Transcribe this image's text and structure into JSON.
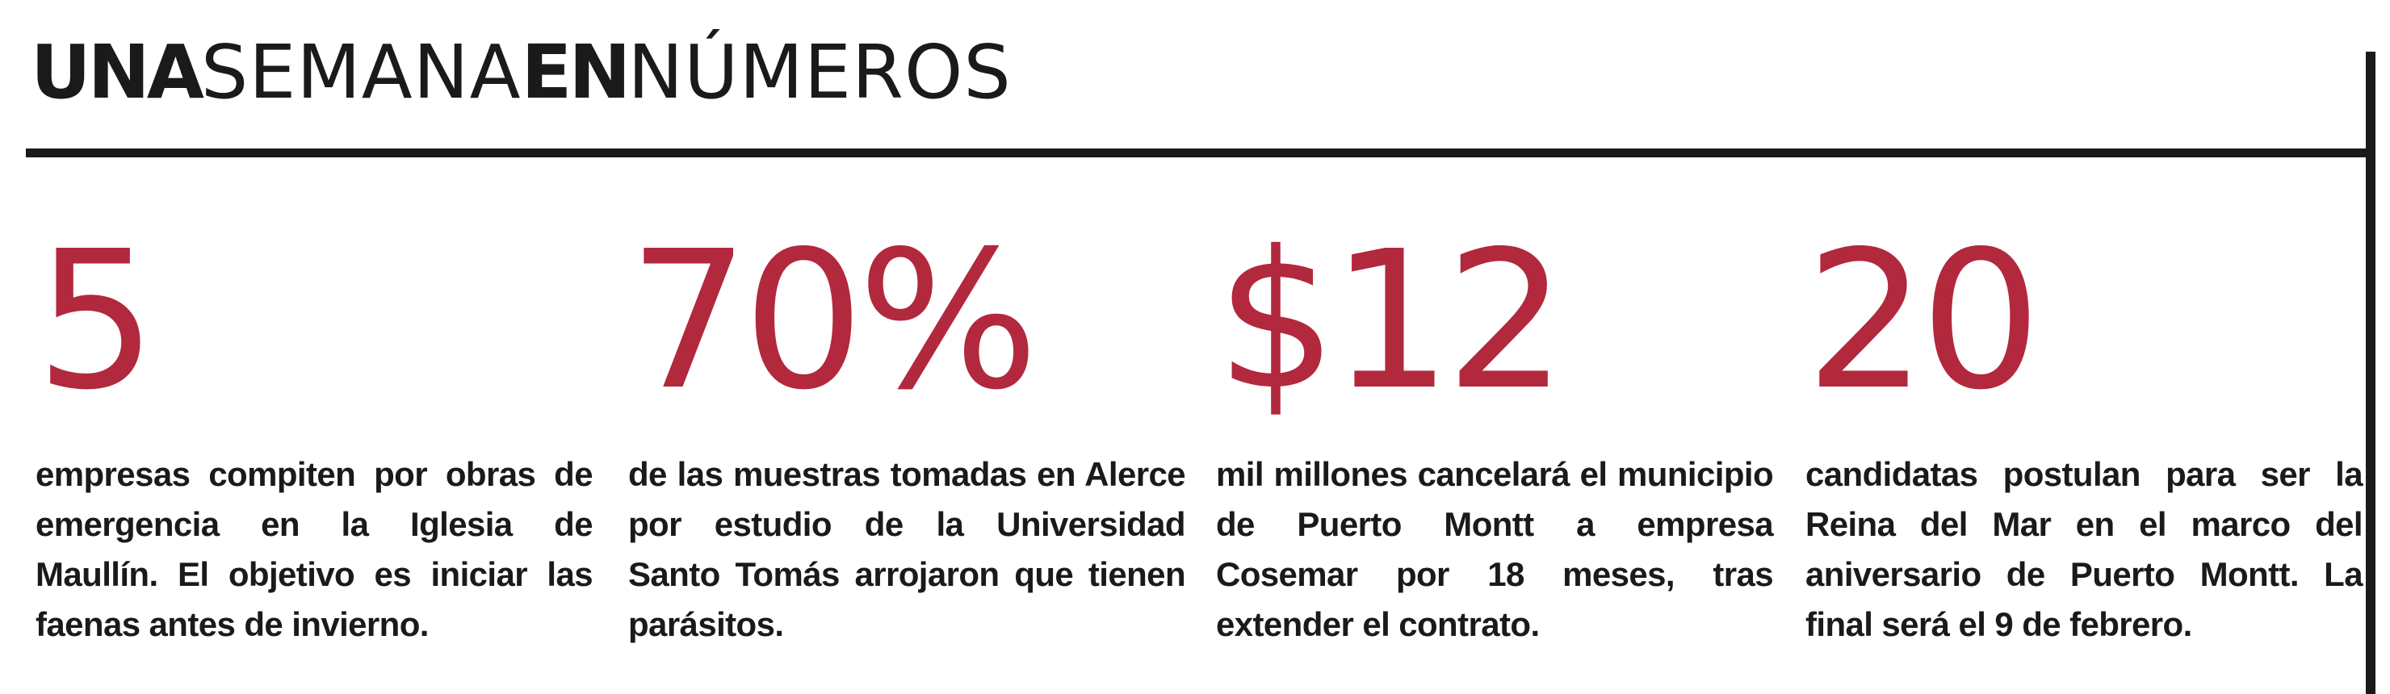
{
  "header": {
    "title_part1": "UNA",
    "title_part2": "SEMANA",
    "title_part3": "EN",
    "title_part4": "NÚMEROS"
  },
  "items": [
    {
      "figure": "5",
      "text": "empresas compiten por obras de emergencia en la Iglesia de Maullín. El objetivo es iniciar las faenas antes de invierno."
    },
    {
      "figure": "70%",
      "text": "de las muestras tomadas en Alerce por estudio de la Universidad Santo Tomás arrojaron que tienen parásitos."
    },
    {
      "figure": "$12",
      "text": "mil millones cancelará el municipio de Puerto Montt a empresa Cosemar por 18 meses, tras extender el contrato."
    },
    {
      "figure": "20",
      "text": "candidatas postulan para ser la Reina del Mar en el marco del aniversario de Puerto Montt. La final será el 9 de febrero."
    }
  ],
  "colors": {
    "accent": "#b2283d",
    "text": "#1a1a1a",
    "background": "#ffffff"
  }
}
